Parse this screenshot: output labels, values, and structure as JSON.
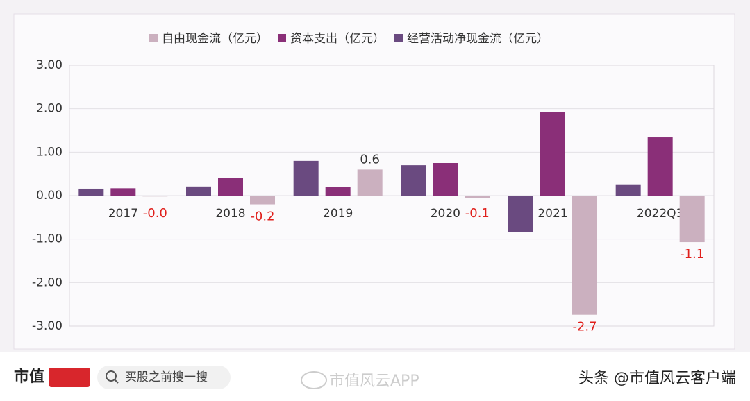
{
  "chart_data": {
    "type": "bar",
    "categories": [
      "2017",
      "2018",
      "2019",
      "2020",
      "2021",
      "2022Q3"
    ],
    "series": [
      {
        "name": "经营活动净现金流（亿元）",
        "color": "#6a4a80",
        "values": [
          0.16,
          0.21,
          0.8,
          0.7,
          -0.83,
          0.26
        ]
      },
      {
        "name": "资本支出（亿元）",
        "color": "#8a2f78",
        "values": [
          0.17,
          0.4,
          0.2,
          0.75,
          1.93,
          1.34
        ]
      },
      {
        "name": "自由现金流（亿元）",
        "color": "#cbb0bf",
        "values": [
          -0.02,
          -0.2,
          0.6,
          -0.06,
          -2.74,
          -1.07
        ],
        "value_labels": [
          "-0.0",
          "-0.2",
          "0.6",
          "-0.1",
          "-2.7",
          "-1.1"
        ]
      }
    ],
    "ylim": [
      -3,
      3
    ],
    "yticks": [
      {
        "value": -3,
        "label": "-3.00"
      },
      {
        "value": -2,
        "label": "-2.00"
      },
      {
        "value": -1,
        "label": "-1.00"
      },
      {
        "value": 0,
        "label": "0.00"
      },
      {
        "value": 1,
        "label": "1.00"
      },
      {
        "value": 2,
        "label": "2.00"
      },
      {
        "value": 3,
        "label": "3.00"
      }
    ],
    "grid": true
  },
  "footer": {
    "logo": "市值",
    "search": "买股之前搜一搜",
    "weibo": "市值风云APP",
    "toutiao": "头条 @市值风云客户端"
  }
}
